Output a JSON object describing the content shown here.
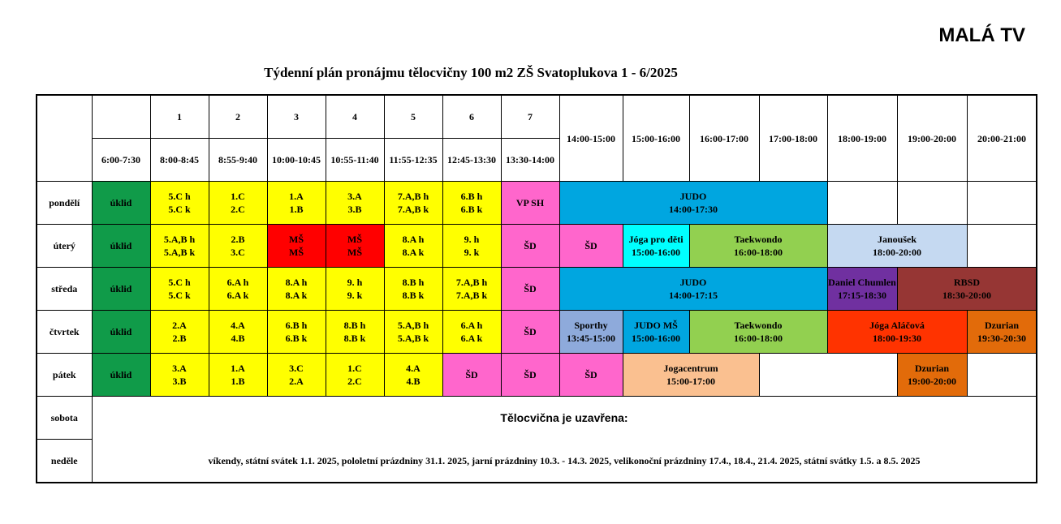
{
  "hall_name": "MALÁ TV",
  "title": "Týdenní plán pronájmu tělocvičny 100 m2 ZŠ Svatoplukova 1 - 6/2025",
  "lesson_numbers": [
    "1",
    "2",
    "3",
    "4",
    "5",
    "6",
    "7"
  ],
  "times": [
    "6:00-7:30",
    "8:00-8:45",
    "8:55-9:40",
    "10:00-10:45",
    "10:55-11:40",
    "11:55-12:35",
    "12:45-13:30",
    "13:30-14:00",
    "14:00-15:00",
    "15:00-16:00",
    "16:00-17:00",
    "17:00-18:00",
    "18:00-19:00",
    "19:00-20:00",
    "20:00-21:00"
  ],
  "days": {
    "mon": "pondělí",
    "tue": "úterý",
    "wed": "středa",
    "thu": "čtvrtek",
    "fri": "pátek",
    "sat": "sobota",
    "sun": "neděle"
  },
  "mon": {
    "c0": [
      "úklid"
    ],
    "c1": [
      "5.C h",
      "5.C k"
    ],
    "c2": [
      "1.C",
      "2.C"
    ],
    "c3": [
      "1.A",
      "1.B"
    ],
    "c4": [
      "3.A",
      "3.B"
    ],
    "c5": [
      "7.A,B h",
      "7.A,B k"
    ],
    "c6": [
      "6.B h",
      "6.B k"
    ],
    "c7": [
      "VP SH"
    ],
    "judo": [
      "JUDO",
      "14:00-17:30"
    ]
  },
  "tue": {
    "c0": [
      "úklid"
    ],
    "c1": [
      "5.A,B h",
      "5.A,B k"
    ],
    "c2": [
      "2.B",
      "3.C"
    ],
    "c3": [
      "MŠ",
      "MŠ"
    ],
    "c4": [
      "MŠ",
      "MŠ"
    ],
    "c5": [
      "8.A h",
      "8.A k"
    ],
    "c6": [
      "9. h",
      "9. k"
    ],
    "c7": [
      "ŠD"
    ],
    "c8": [
      "ŠD"
    ],
    "joga": [
      "Jóga pro děti",
      "15:00-16:00"
    ],
    "taekwondo": [
      "Taekwondo",
      "16:00-18:00"
    ],
    "janousek": [
      "Janoušek",
      "18:00-20:00"
    ]
  },
  "wed": {
    "c0": [
      "úklid"
    ],
    "c1": [
      "5.C h",
      "5.C k"
    ],
    "c2": [
      "6.A h",
      "6.A k"
    ],
    "c3": [
      "8.A h",
      "8.A k"
    ],
    "c4": [
      "9. h",
      "9. k"
    ],
    "c5": [
      "8.B h",
      "8.B k"
    ],
    "c6": [
      "7.A,B h",
      "7.A,B k"
    ],
    "c7": [
      "ŠD"
    ],
    "judo": [
      "JUDO",
      "14:00-17:15"
    ],
    "daniel": [
      "Daniel Chumlen",
      "17:15-18:30"
    ],
    "rbsd": [
      "RBSD",
      "18:30-20:00"
    ]
  },
  "thu": {
    "c0": [
      "úklid"
    ],
    "c1": [
      "2.A",
      "2.B"
    ],
    "c2": [
      "4.A",
      "4.B"
    ],
    "c3": [
      "6.B h",
      "6.B k"
    ],
    "c4": [
      "8.B h",
      "8.B k"
    ],
    "c5": [
      "5.A,B h",
      "5.A,B k"
    ],
    "c6": [
      "6.A h",
      "6.A k"
    ],
    "c7": [
      "ŠD"
    ],
    "sporthy": [
      "Sporthy",
      "13:45-15:00"
    ],
    "judoms": [
      "JUDO MŠ",
      "15:00-16:00"
    ],
    "taekwondo": [
      "Taekwondo",
      "16:00-18:00"
    ],
    "joga": [
      "Jóga Aláčová",
      "18:00-19:30"
    ],
    "dzurian": [
      "Dzurian",
      "19:30-20:30"
    ]
  },
  "fri": {
    "c0": [
      "úklid"
    ],
    "c1": [
      "3.A",
      "3.B"
    ],
    "c2": [
      "1.A",
      "1.B"
    ],
    "c3": [
      "3.C",
      "2.A"
    ],
    "c4": [
      "1.C",
      "2.C"
    ],
    "c5": [
      "4.A",
      "4.B"
    ],
    "c6": [
      "ŠD"
    ],
    "c7": [
      "ŠD"
    ],
    "c8": [
      "ŠD"
    ],
    "jogacentrum": [
      "Jogacentrum",
      "15:00-17:00"
    ],
    "dzurian": [
      "Dzurian",
      "19:00-20:00"
    ]
  },
  "weekend_closed": "Tělocvična je uzavřena:",
  "weekend_note": "víkendy, státní svátek 1.1. 2025, pololetní prázdniny 31.1. 2025, jarní prázdniny 10.3. - 14.3. 2025, velikonoční prázdniny 17.4., 18.4., 21.4. 2025, státní svátky 1.5. a 8.5. 2025",
  "colors": {
    "cleaning": "#109b49",
    "school": "#ffff00",
    "ms": "#ff0000",
    "sd": "#ff66cc",
    "judo": "#00a6e0",
    "joga_deti": "#00ffff",
    "taekwondo": "#92d050",
    "janousek": "#c5d9f1",
    "daniel": "#7030a0",
    "rbsd": "#963634",
    "sporthy": "#8eaadb",
    "joga_alacova": "#ff3300",
    "dzurian": "#e26b0a",
    "jogacentrum": "#fac090"
  }
}
